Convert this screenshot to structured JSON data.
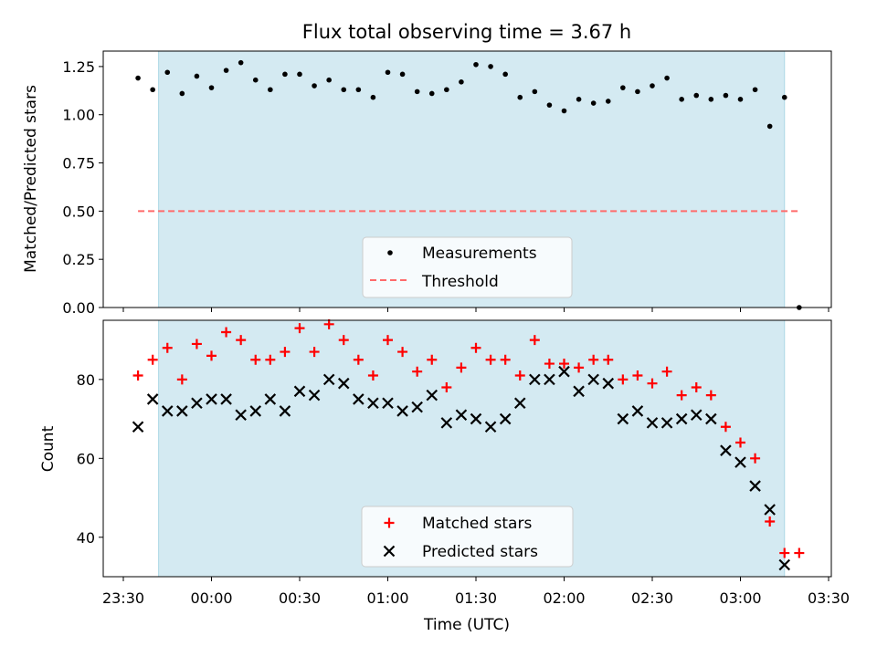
{
  "chart_data": [
    {
      "type": "scatter",
      "title": "Flux total observing time = 3.67 h",
      "ylabel": "Matched/Predicted stars",
      "xlabel": "",
      "ylim": [
        0,
        1.33
      ],
      "y_ticks": [
        "0.00",
        "0.25",
        "0.50",
        "0.75",
        "1.00",
        "1.25"
      ],
      "x_tick_labels_visible": false,
      "observing_window": [
        "23:42",
        "03:15"
      ],
      "threshold": 0.5,
      "legend": [
        "Measurements",
        "Threshold"
      ],
      "legend_position": "bottom-center",
      "series": [
        {
          "name": "Measurements",
          "x": [
            "23:35",
            "23:40",
            "23:45",
            "23:50",
            "23:55",
            "00:00",
            "00:05",
            "00:10",
            "00:15",
            "00:20",
            "00:25",
            "00:30",
            "00:35",
            "00:40",
            "00:45",
            "00:50",
            "00:55",
            "01:00",
            "01:05",
            "01:10",
            "01:15",
            "01:20",
            "01:25",
            "01:30",
            "01:35",
            "01:40",
            "01:45",
            "01:50",
            "01:55",
            "02:00",
            "02:05",
            "02:10",
            "02:15",
            "02:20",
            "02:25",
            "02:30",
            "02:35",
            "02:40",
            "02:45",
            "02:50",
            "02:55",
            "03:00",
            "03:05",
            "03:10",
            "03:15",
            "03:20"
          ],
          "values": [
            1.19,
            1.13,
            1.22,
            1.11,
            1.2,
            1.14,
            1.23,
            1.27,
            1.18,
            1.13,
            1.21,
            1.21,
            1.15,
            1.18,
            1.13,
            1.13,
            1.09,
            1.22,
            1.21,
            1.12,
            1.11,
            1.13,
            1.17,
            1.26,
            1.25,
            1.21,
            1.09,
            1.12,
            1.05,
            1.02,
            1.08,
            1.06,
            1.07,
            1.14,
            1.12,
            1.15,
            1.19,
            1.08,
            1.1,
            1.08,
            1.1,
            1.08,
            1.13,
            0.94,
            1.09,
            0.0
          ]
        }
      ]
    },
    {
      "type": "scatter",
      "title": "",
      "ylabel": "Count",
      "xlabel": "Time (UTC)",
      "ylim": [
        30,
        95
      ],
      "y_ticks": [
        "40",
        "60",
        "80"
      ],
      "x_ticks": [
        "23:30",
        "00:00",
        "00:30",
        "01:00",
        "01:30",
        "02:00",
        "02:30",
        "03:00",
        "03:30"
      ],
      "observing_window": [
        "23:42",
        "03:15"
      ],
      "legend": [
        "Matched stars",
        "Predicted stars"
      ],
      "legend_position": "bottom-center",
      "series": [
        {
          "name": "Matched stars",
          "marker": "plus",
          "color": "#ff0000",
          "x": [
            "23:35",
            "23:40",
            "23:45",
            "23:50",
            "23:55",
            "00:00",
            "00:05",
            "00:10",
            "00:15",
            "00:20",
            "00:25",
            "00:30",
            "00:35",
            "00:40",
            "00:45",
            "00:50",
            "00:55",
            "01:00",
            "01:05",
            "01:10",
            "01:15",
            "01:20",
            "01:25",
            "01:30",
            "01:35",
            "01:40",
            "01:45",
            "01:50",
            "01:55",
            "02:00",
            "02:05",
            "02:10",
            "02:15",
            "02:20",
            "02:25",
            "02:30",
            "02:35",
            "02:40",
            "02:45",
            "02:50",
            "02:55",
            "03:00",
            "03:05",
            "03:10",
            "03:15",
            "03:20"
          ],
          "values": [
            81,
            85,
            88,
            80,
            89,
            86,
            92,
            90,
            85,
            85,
            87,
            93,
            87,
            94,
            90,
            85,
            81,
            90,
            87,
            82,
            85,
            78,
            83,
            88,
            85,
            85,
            81,
            90,
            84,
            84,
            83,
            85,
            85,
            80,
            81,
            79,
            82,
            76,
            78,
            76,
            68,
            64,
            60,
            44,
            36,
            36
          ]
        },
        {
          "name": "Predicted stars",
          "marker": "x",
          "color": "#000000",
          "x": [
            "23:35",
            "23:40",
            "23:45",
            "23:50",
            "23:55",
            "00:00",
            "00:05",
            "00:10",
            "00:15",
            "00:20",
            "00:25",
            "00:30",
            "00:35",
            "00:40",
            "00:45",
            "00:50",
            "00:55",
            "01:00",
            "01:05",
            "01:10",
            "01:15",
            "01:20",
            "01:25",
            "01:30",
            "01:35",
            "01:40",
            "01:45",
            "01:50",
            "01:55",
            "02:00",
            "02:05",
            "02:10",
            "02:15",
            "02:20",
            "02:25",
            "02:30",
            "02:35",
            "02:40",
            "02:45",
            "02:50",
            "02:55",
            "03:00",
            "03:05",
            "03:10",
            "03:15"
          ],
          "values": [
            68,
            75,
            72,
            72,
            74,
            75,
            75,
            71,
            72,
            75,
            72,
            77,
            76,
            80,
            79,
            75,
            74,
            74,
            72,
            73,
            76,
            69,
            71,
            70,
            68,
            70,
            74,
            80,
            80,
            82,
            77,
            80,
            79,
            70,
            72,
            69,
            69,
            70,
            71,
            70,
            62,
            59,
            53,
            47,
            33
          ]
        }
      ]
    }
  ],
  "colors": {
    "window_fill": "#add8e6",
    "threshold": "#ff6b6b",
    "matched": "#ff0000",
    "predicted": "#000000",
    "measurement": "#000000"
  }
}
